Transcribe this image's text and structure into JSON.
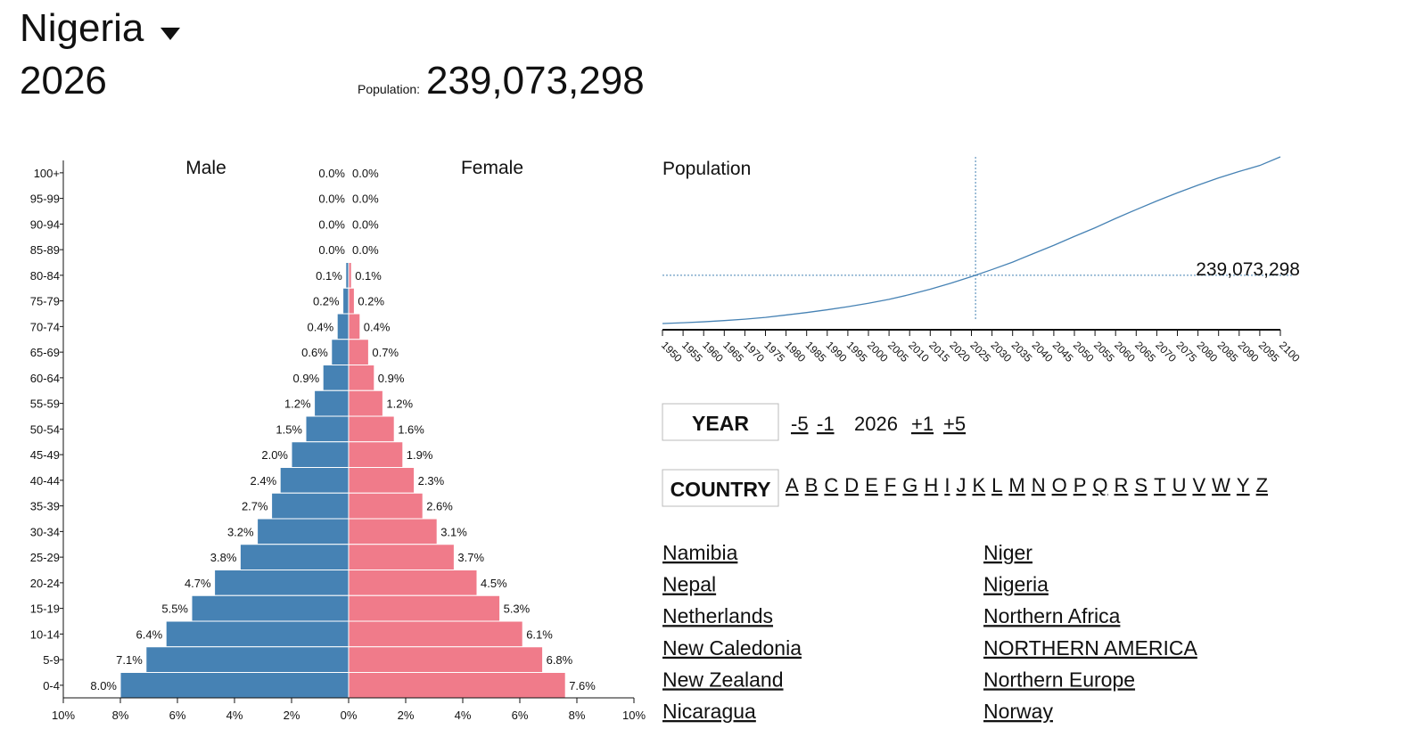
{
  "header": {
    "country": "Nigeria",
    "year": "2026",
    "population_label": "Population:",
    "population": "239,073,298"
  },
  "chart_data": [
    {
      "type": "pyramid",
      "categories": [
        "100+",
        "95-99",
        "90-94",
        "85-89",
        "80-84",
        "75-79",
        "70-74",
        "65-69",
        "60-64",
        "55-59",
        "50-54",
        "45-49",
        "40-44",
        "35-39",
        "30-34",
        "25-29",
        "20-24",
        "15-19",
        "10-14",
        "5-9",
        "0-4"
      ],
      "series": [
        {
          "name": "Male",
          "color": "#4682b4",
          "values": [
            0.0,
            0.0,
            0.0,
            0.0,
            0.1,
            0.2,
            0.4,
            0.6,
            0.9,
            1.2,
            1.5,
            2.0,
            2.4,
            2.7,
            3.2,
            3.8,
            4.7,
            5.5,
            6.4,
            7.1,
            8.0
          ],
          "value_labels": [
            "0.0%",
            "0.0%",
            "0.0%",
            "0.0%",
            "0.1%",
            "0.2%",
            "0.4%",
            "0.6%",
            "0.9%",
            "1.2%",
            "1.5%",
            "2.0%",
            "2.4%",
            "2.7%",
            "3.2%",
            "3.8%",
            "4.7%",
            "5.5%",
            "6.4%",
            "7.1%",
            "8.0%"
          ]
        },
        {
          "name": "Female",
          "color": "#f07b8a",
          "values": [
            0.0,
            0.0,
            0.0,
            0.0,
            0.1,
            0.2,
            0.4,
            0.7,
            0.9,
            1.2,
            1.6,
            1.9,
            2.3,
            2.6,
            3.1,
            3.7,
            4.5,
            5.3,
            6.1,
            6.8,
            7.6
          ],
          "value_labels": [
            "0.0%",
            "0.0%",
            "0.0%",
            "0.0%",
            "0.1%",
            "0.2%",
            "0.4%",
            "0.7%",
            "0.9%",
            "1.2%",
            "1.6%",
            "1.9%",
            "2.3%",
            "2.6%",
            "3.1%",
            "3.7%",
            "4.5%",
            "5.3%",
            "6.1%",
            "6.8%",
            "7.6%"
          ]
        }
      ],
      "xlim": [
        0,
        10
      ],
      "xticks": [
        {
          "value": 0,
          "label": "0%"
        },
        {
          "value": 2,
          "label": "2%"
        },
        {
          "value": 4,
          "label": "4%"
        },
        {
          "value": 6,
          "label": "6%"
        },
        {
          "value": 8,
          "label": "8%"
        },
        {
          "value": 10,
          "label": "10%"
        }
      ]
    },
    {
      "type": "line",
      "title": "Population",
      "color": "#4682b4",
      "x": [
        1950,
        1955,
        1960,
        1965,
        1970,
        1975,
        1980,
        1985,
        1990,
        1995,
        2000,
        2005,
        2010,
        2015,
        2020,
        2025,
        2030,
        2035,
        2040,
        2045,
        2050,
        2055,
        2060,
        2065,
        2070,
        2075,
        2080,
        2085,
        2090,
        2095,
        2100
      ],
      "values": [
        37860000,
        41122000,
        45138000,
        50127000,
        55982000,
        63374000,
        73424000,
        83563000,
        95212000,
        107948000,
        122284000,
        138865000,
        158503000,
        181137000,
        206140000,
        233558000,
        262977000,
        294000000,
        329067000,
        364000000,
        401315000,
        437000000,
        476000000,
        513000000,
        549000000,
        583000000,
        615000000,
        645000000,
        672000000,
        697000000,
        732942000
      ],
      "xlim": [
        1950,
        2100
      ],
      "xticks": [
        1950,
        1955,
        1960,
        1965,
        1970,
        1975,
        1980,
        1985,
        1990,
        1995,
        2000,
        2005,
        2010,
        2015,
        2020,
        2025,
        2030,
        2035,
        2040,
        2045,
        2050,
        2055,
        2060,
        2065,
        2070,
        2075,
        2080,
        2085,
        2090,
        2095,
        2100
      ],
      "marker_x": 2026,
      "marker_value": {
        "value": 239073298,
        "label": "239,073,298"
      }
    }
  ],
  "controls": {
    "year_label": "YEAR",
    "year_buttons": [
      "-5",
      "-1",
      "2026",
      "+1",
      "+5"
    ],
    "country_label": "COUNTRY",
    "letters": [
      "A",
      "B",
      "C",
      "D",
      "E",
      "F",
      "G",
      "H",
      "I",
      "J",
      "K",
      "L",
      "M",
      "N",
      "O",
      "P",
      "Q",
      "R",
      "S",
      "T",
      "U",
      "V",
      "W",
      "Y",
      "Z"
    ]
  },
  "countries": {
    "left": [
      "Namibia",
      "Nepal",
      "Netherlands",
      "New Caledonia",
      "New Zealand",
      "Nicaragua"
    ],
    "right": [
      "Niger",
      "Nigeria",
      "Northern Africa",
      "NORTHERN AMERICA",
      "Northern Europe",
      "Norway"
    ]
  }
}
